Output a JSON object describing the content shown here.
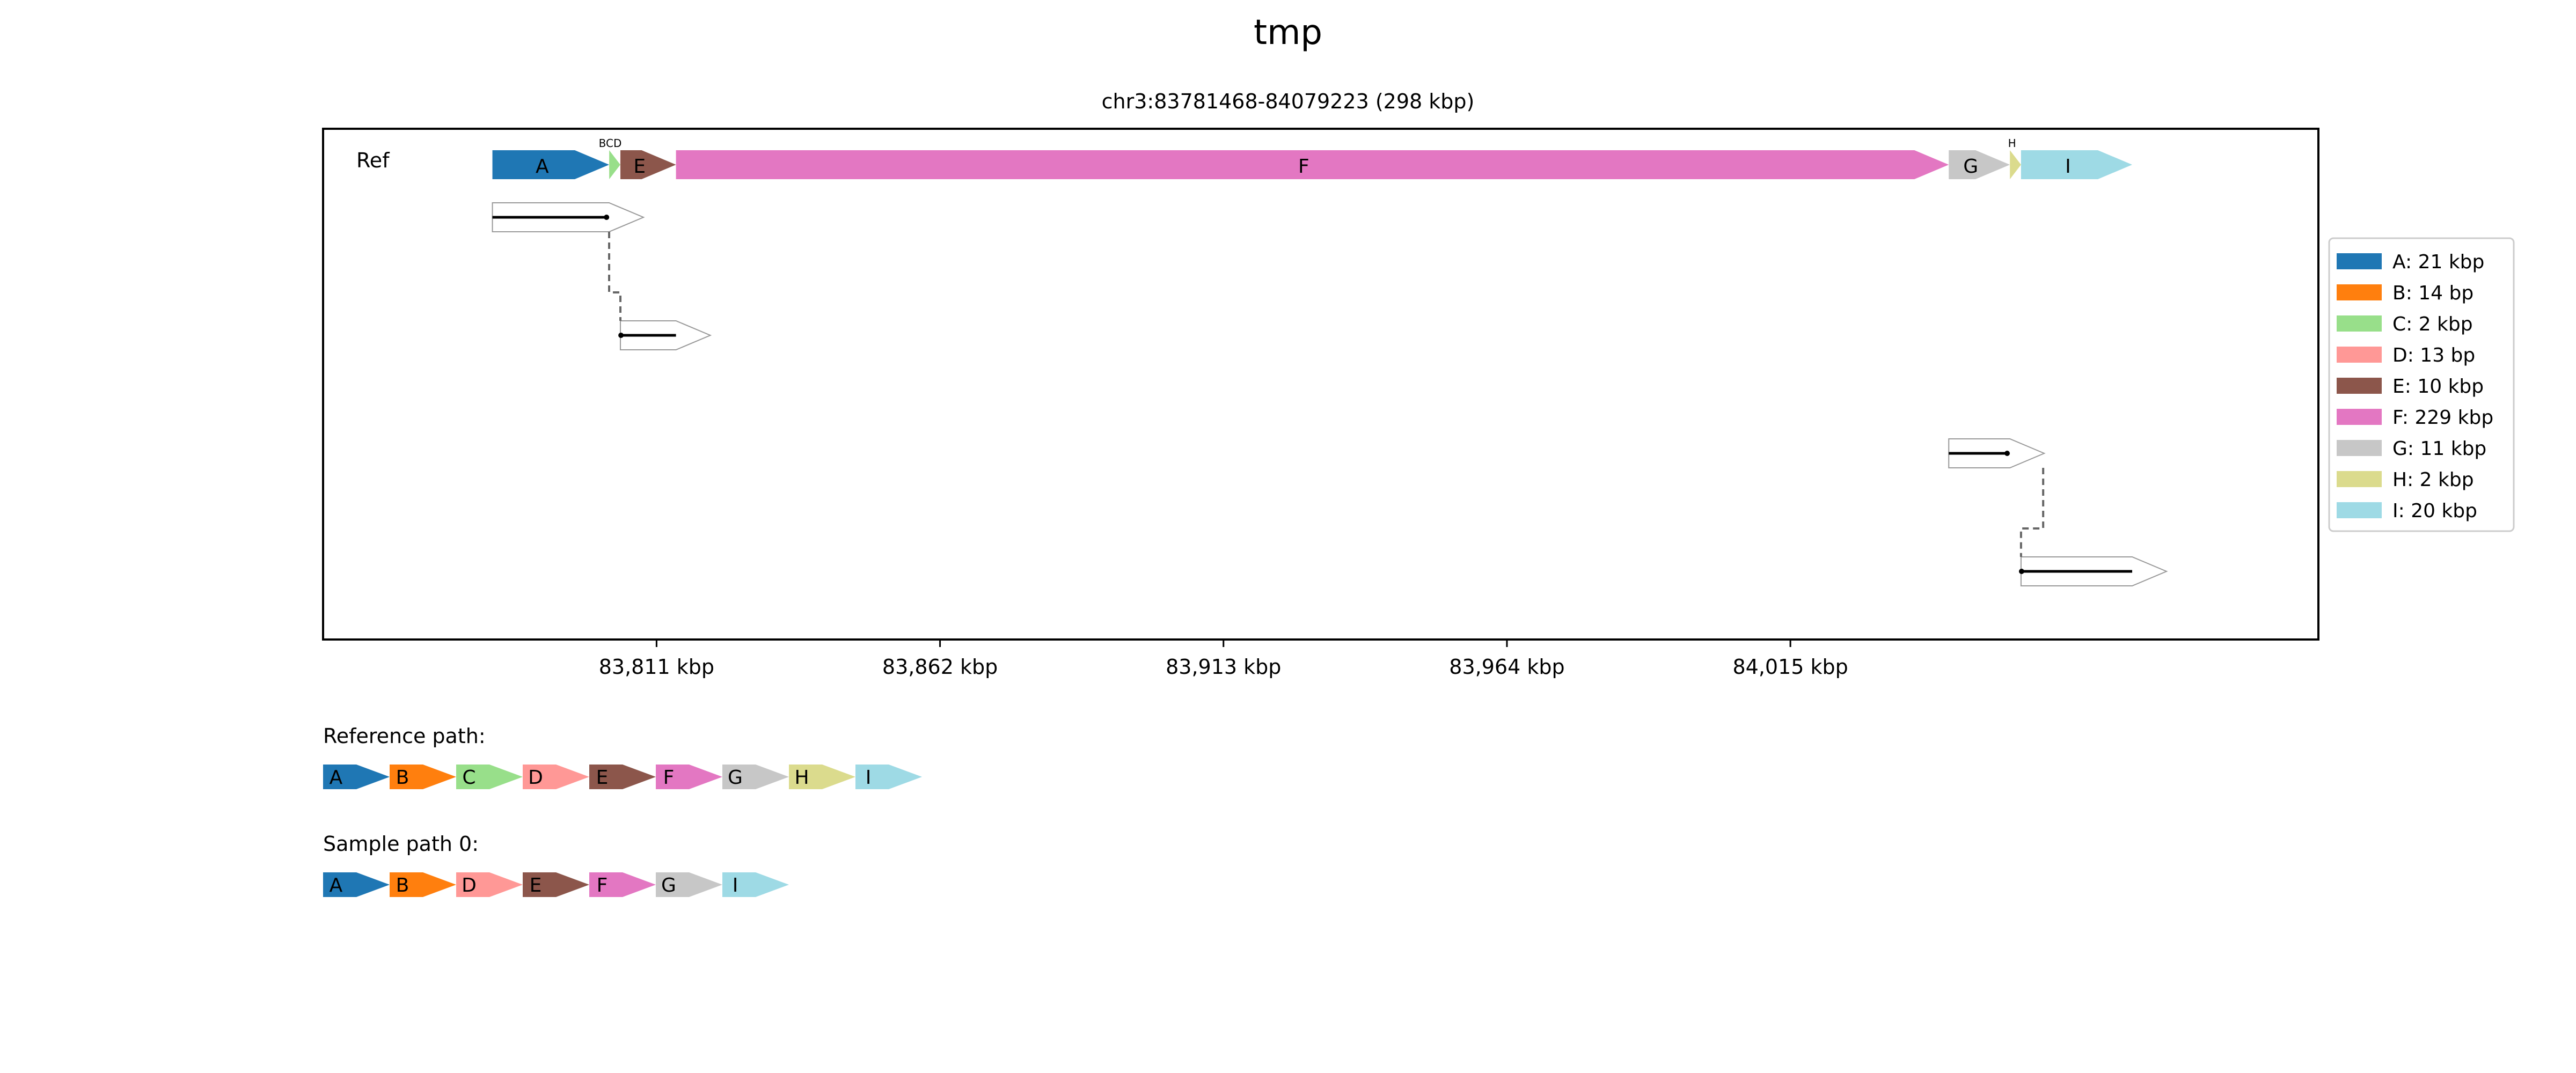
{
  "figure": {
    "title": "tmp",
    "region_label": "chr3:83781468-84079223 (298 kbp)",
    "track_label": "Ref"
  },
  "segments": [
    {
      "id": "A",
      "start": 83781468,
      "end": 83802468,
      "color": "#1f77b4",
      "legend": "A: 21 kbp"
    },
    {
      "id": "B",
      "start": 83802468,
      "end": 83802482,
      "color": "#ff7f0e",
      "legend": "B: 14 bp"
    },
    {
      "id": "C",
      "start": 83802482,
      "end": 83804482,
      "color": "#98df8a",
      "legend": "C: 2 kbp"
    },
    {
      "id": "D",
      "start": 83804482,
      "end": 83804495,
      "color": "#ff9896",
      "legend": "D: 13 bp"
    },
    {
      "id": "E",
      "start": 83804495,
      "end": 83814495,
      "color": "#8c564b",
      "legend": "E: 10 kbp"
    },
    {
      "id": "F",
      "start": 83814495,
      "end": 84043495,
      "color": "#e377c2",
      "legend": "F: 229 kbp"
    },
    {
      "id": "G",
      "start": 84043495,
      "end": 84054495,
      "color": "#c7c7c7",
      "legend": "G: 11 kbp"
    },
    {
      "id": "H",
      "start": 84054495,
      "end": 84056495,
      "color": "#dbdb8d",
      "legend": "H: 2 kbp"
    },
    {
      "id": "I",
      "start": 84056495,
      "end": 84076495,
      "color": "#9edae5",
      "legend": "I: 20 kbp"
    }
  ],
  "small_labels": [
    "BCD",
    "H"
  ],
  "x_axis": {
    "min": 83751000,
    "max": 84110000,
    "ticks": [
      {
        "value": 83811000,
        "label": "83,811 kbp"
      },
      {
        "value": 83862000,
        "label": "83,862 kbp"
      },
      {
        "value": 83913000,
        "label": "83,913 kbp"
      },
      {
        "value": 83964000,
        "label": "83,964 kbp"
      },
      {
        "value": 84015000,
        "label": "84,015 kbp"
      }
    ]
  },
  "alignments": [
    {
      "start": 83781468,
      "end": 83802468,
      "row": 1,
      "line_start": 83781468,
      "line_end": 83802000
    },
    {
      "start": 83804495,
      "end": 83814495,
      "row": 2,
      "line_start": 83804600,
      "line_end": 83814495
    },
    {
      "start": 84043495,
      "end": 84054495,
      "row": 3,
      "line_start": 84043495,
      "line_end": 84054000
    },
    {
      "start": 84056495,
      "end": 84076495,
      "row": 4,
      "line_start": 84056600,
      "line_end": 84076495
    }
  ],
  "connectors": [
    {
      "from": 0,
      "to": 1
    },
    {
      "from": 2,
      "to": 3
    }
  ],
  "paths": [
    {
      "label": "Reference path:",
      "segments": [
        "A",
        "B",
        "C",
        "D",
        "E",
        "F",
        "G",
        "H",
        "I"
      ]
    },
    {
      "label": "Sample path 0:",
      "segments": [
        "A",
        "B",
        "D",
        "E",
        "F",
        "G",
        "I"
      ]
    }
  ]
}
